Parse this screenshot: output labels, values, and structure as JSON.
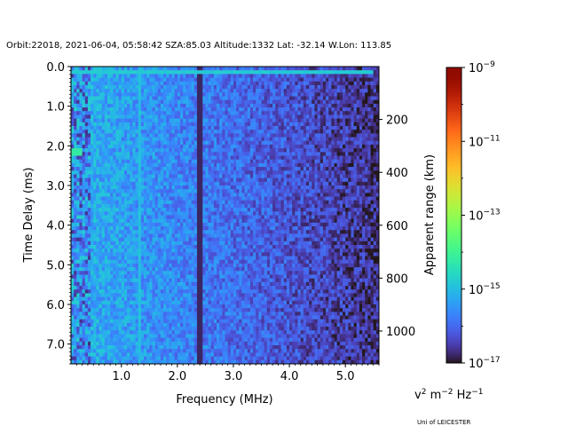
{
  "chart_data": {
    "type": "heatmap",
    "title": "Orbit:22018, 2021-06-04, 05:58:42 SZA:85.03 Altitude:1332 Lat: -32.14 W.Lon: 113.85",
    "xlabel": "Frequency (MHz)",
    "ylabel": "Time Delay (ms)",
    "y2label": "Apparent range (km)",
    "xlim": [
      0.1,
      5.6
    ],
    "ylim": [
      7.5,
      0.0
    ],
    "xticks": [
      "1.0",
      "2.0",
      "3.0",
      "4.0",
      "5.0"
    ],
    "xtick_values": [
      1.0,
      2.0,
      3.0,
      4.0,
      5.0
    ],
    "yticks": [
      "0.0",
      "1.0",
      "2.0",
      "3.0",
      "4.0",
      "5.0",
      "6.0",
      "7.0"
    ],
    "ytick_values": [
      0.0,
      1.0,
      2.0,
      3.0,
      4.0,
      5.0,
      6.0,
      7.0
    ],
    "y2ticks": [
      "200",
      "400",
      "600",
      "800",
      "1000"
    ],
    "y2tick_values": [
      200,
      400,
      600,
      800,
      1000
    ],
    "y2_km_per_ms": 149.9,
    "colorbar": {
      "scale": "log",
      "colormap": "turbo",
      "range": [
        1e-17,
        1e-09
      ],
      "tick_mantissa": [
        "10",
        "10",
        "10",
        "10",
        "10"
      ],
      "tick_exponents": [
        "−9",
        "−11",
        "−13",
        "−15",
        "−17"
      ],
      "tick_values": [
        1e-09,
        1e-11,
        1e-13,
        1e-15,
        1e-17
      ],
      "units_base": [
        "v",
        " m",
        " Hz"
      ],
      "units_exp": [
        "2",
        "−2",
        "−1"
      ]
    },
    "features": {
      "vertical_bright_lines_mhz": [
        1.32
      ],
      "vertical_dark_lines_mhz": [
        2.4
      ],
      "bright_top_band_ms": 0.15,
      "bright_spot": {
        "freq_mhz": 0.18,
        "delay_ms": 2.15
      },
      "background_log_range": [
        -16.9,
        -14.8
      ]
    }
  },
  "footer": {
    "credit": "Uni of LEICESTER"
  }
}
